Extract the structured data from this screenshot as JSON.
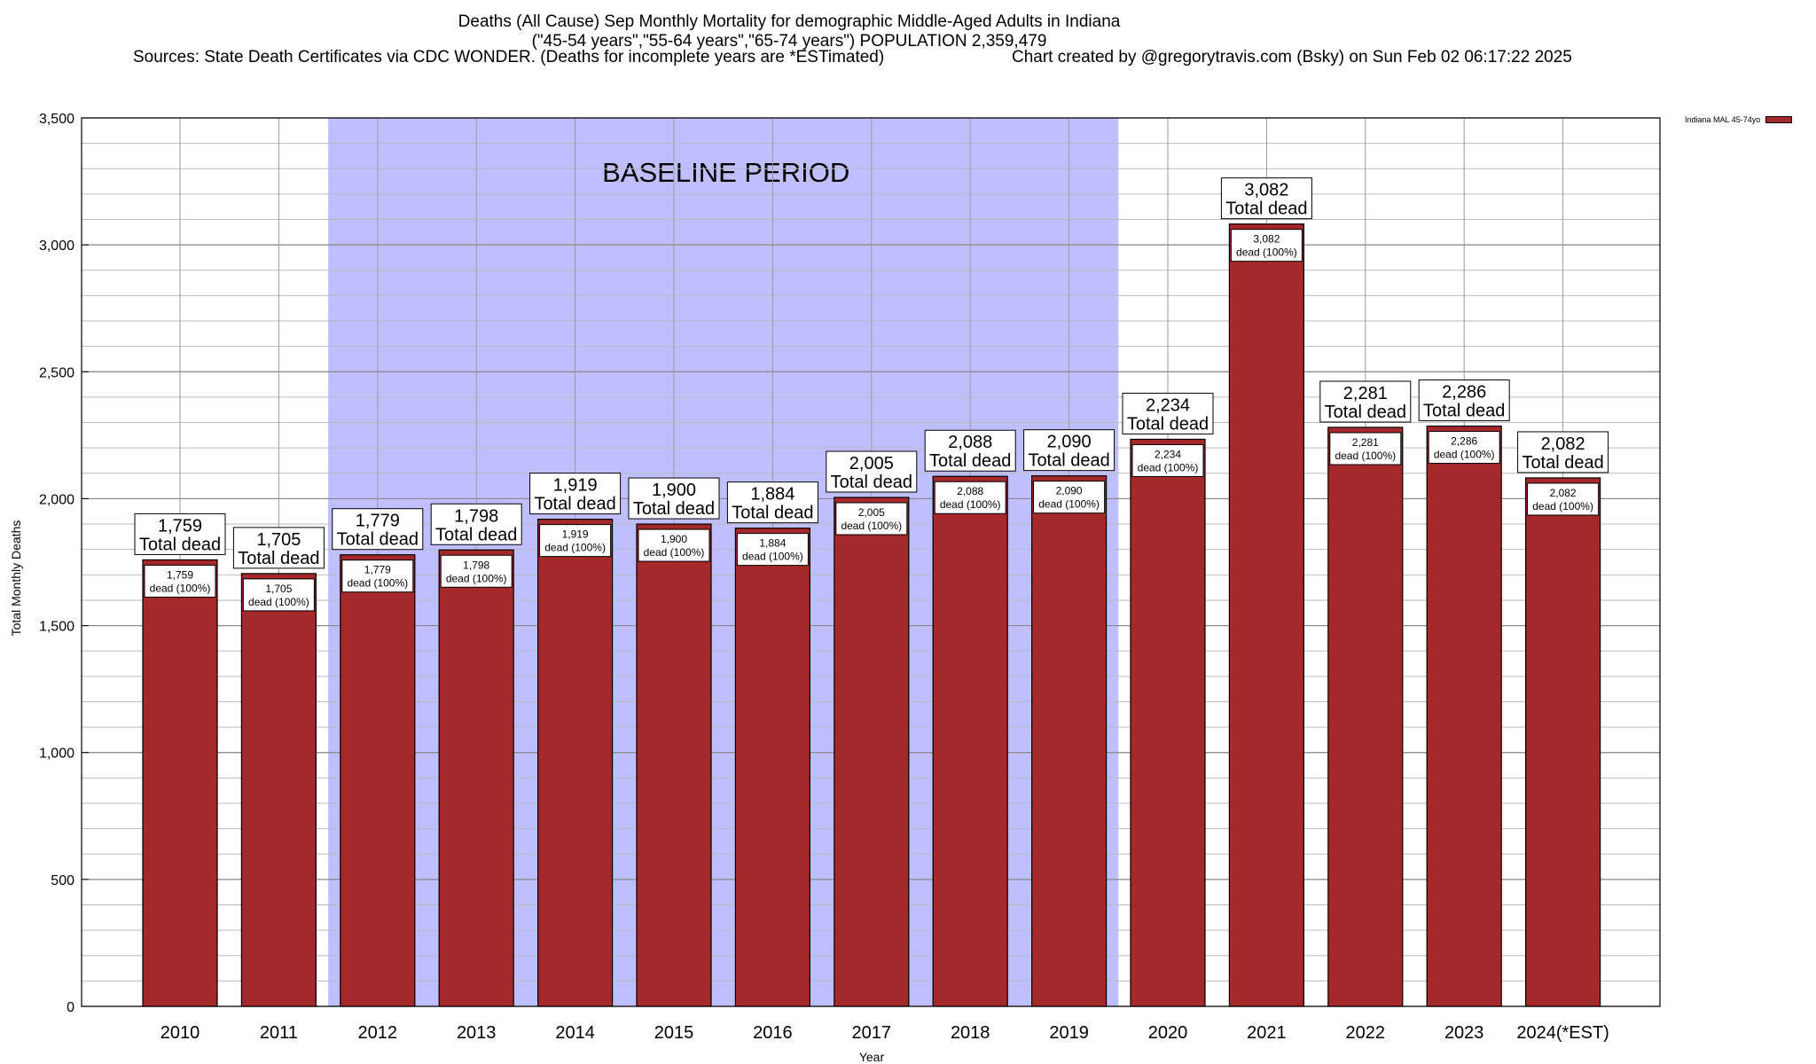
{
  "header": {
    "title_line1": "Deaths (All Cause) Sep Monthly Mortality for demographic Middle-Aged Adults in Indiana",
    "title_line2": "(\"45-54 years\",\"55-64 years\",\"65-74 years\") POPULATION 2,359,479",
    "sources": "Sources: State Death Certificates via CDC WONDER. (Deaths for incomplete years are *ESTimated)",
    "credit": "Chart created by @gregorytravis.com (Bsky) on Sun Feb 02 06:17:22 2025"
  },
  "chart_data": {
    "type": "bar",
    "categories": [
      "2010",
      "2011",
      "2012",
      "2013",
      "2014",
      "2015",
      "2016",
      "2017",
      "2018",
      "2019",
      "2020",
      "2021",
      "2022",
      "2023",
      "2024(*EST)"
    ],
    "series": [
      {
        "name": "Indiana MAL 45-74yo",
        "values": [
          1759,
          1705,
          1779,
          1798,
          1919,
          1900,
          1884,
          2005,
          2088,
          2090,
          2234,
          3082,
          2281,
          2286,
          2082
        ]
      }
    ],
    "value_labels": [
      "1,759",
      "1,705",
      "1,779",
      "1,798",
      "1,919",
      "1,900",
      "1,884",
      "2,005",
      "2,088",
      "2,090",
      "2,234",
      "3,082",
      "2,281",
      "2,286",
      "2,082"
    ],
    "top_label_suffix": "Total dead",
    "inner_label_suffix": "dead (100%)",
    "xlabel": "Year",
    "ylabel": "Total Monthly Deaths",
    "ylim": [
      0,
      3500
    ],
    "yticks": [
      0,
      500,
      1000,
      1500,
      2000,
      2500,
      3000,
      3500
    ],
    "ytick_labels": [
      "0",
      "500",
      "1,000",
      "1,500",
      "2,000",
      "2,500",
      "3,000",
      "3,500"
    ],
    "minor_grid_step": 100,
    "baseline_period": {
      "label": "BASELINE PERIOD",
      "from": "2012",
      "to": "2019"
    },
    "colors": {
      "bar": "#A5282A",
      "baseline_band": "#BFBFFF",
      "grid": "#BBBBBB"
    },
    "grid": true,
    "legend_position": "top-right"
  }
}
